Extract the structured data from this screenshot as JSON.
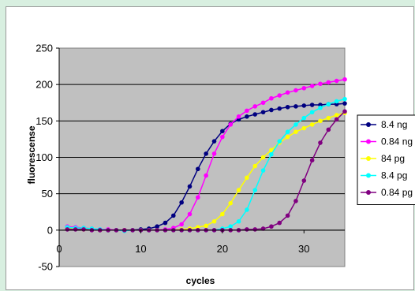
{
  "chart_data": {
    "type": "line",
    "title": "",
    "xlabel": "cycles",
    "ylabel": "fluorescense",
    "xlim": [
      0,
      35
    ],
    "ylim": [
      -50,
      250
    ],
    "xticks": [
      0,
      10,
      20,
      30
    ],
    "yticks": [
      -50,
      0,
      50,
      100,
      150,
      200,
      250
    ],
    "grid": "horizontal",
    "plot_background": "#c0c0c0",
    "legend_position": "right",
    "x": [
      1,
      2,
      3,
      4,
      5,
      6,
      7,
      8,
      9,
      10,
      11,
      12,
      13,
      14,
      15,
      16,
      17,
      18,
      19,
      20,
      21,
      22,
      23,
      24,
      25,
      26,
      27,
      28,
      29,
      30,
      31,
      32,
      33,
      34,
      35
    ],
    "series": [
      {
        "name": "8.4 ng",
        "color": "#000080",
        "values": [
          3,
          2,
          2,
          1,
          0,
          0,
          0,
          0,
          0,
          1,
          2,
          5,
          10,
          20,
          38,
          60,
          84,
          105,
          122,
          136,
          146,
          152,
          156,
          159,
          162,
          165,
          167,
          169,
          170,
          171,
          172,
          172,
          173,
          173,
          174
        ]
      },
      {
        "name": "0.84 ng",
        "color": "#ff00ff",
        "values": [
          5,
          4,
          3,
          2,
          1,
          1,
          0,
          0,
          0,
          0,
          0,
          0,
          1,
          3,
          8,
          22,
          45,
          75,
          105,
          128,
          145,
          156,
          164,
          170,
          175,
          181,
          185,
          189,
          192,
          195,
          198,
          201,
          203,
          205,
          207
        ]
      },
      {
        "name": "84 pg",
        "color": "#ffff00",
        "values": [
          2,
          2,
          1,
          1,
          0,
          0,
          0,
          0,
          0,
          0,
          0,
          0,
          0,
          0,
          1,
          2,
          4,
          6,
          12,
          22,
          37,
          55,
          72,
          88,
          100,
          110,
          120,
          128,
          135,
          140,
          145,
          150,
          154,
          158,
          161
        ]
      },
      {
        "name": "8.4 pg",
        "color": "#00ffff",
        "values": [
          4,
          3,
          3,
          2,
          1,
          0,
          0,
          -1,
          0,
          0,
          0,
          0,
          0,
          0,
          0,
          0,
          0,
          0,
          0,
          2,
          5,
          12,
          28,
          55,
          82,
          104,
          122,
          135,
          145,
          154,
          162,
          168,
          173,
          177,
          180
        ]
      },
      {
        "name": "0.84 pg",
        "color": "#800080",
        "values": [
          1,
          1,
          1,
          0,
          0,
          0,
          0,
          0,
          0,
          0,
          0,
          0,
          0,
          0,
          0,
          0,
          0,
          0,
          0,
          0,
          0,
          0,
          1,
          1,
          2,
          5,
          10,
          20,
          40,
          68,
          96,
          120,
          138,
          152,
          163
        ]
      }
    ]
  }
}
